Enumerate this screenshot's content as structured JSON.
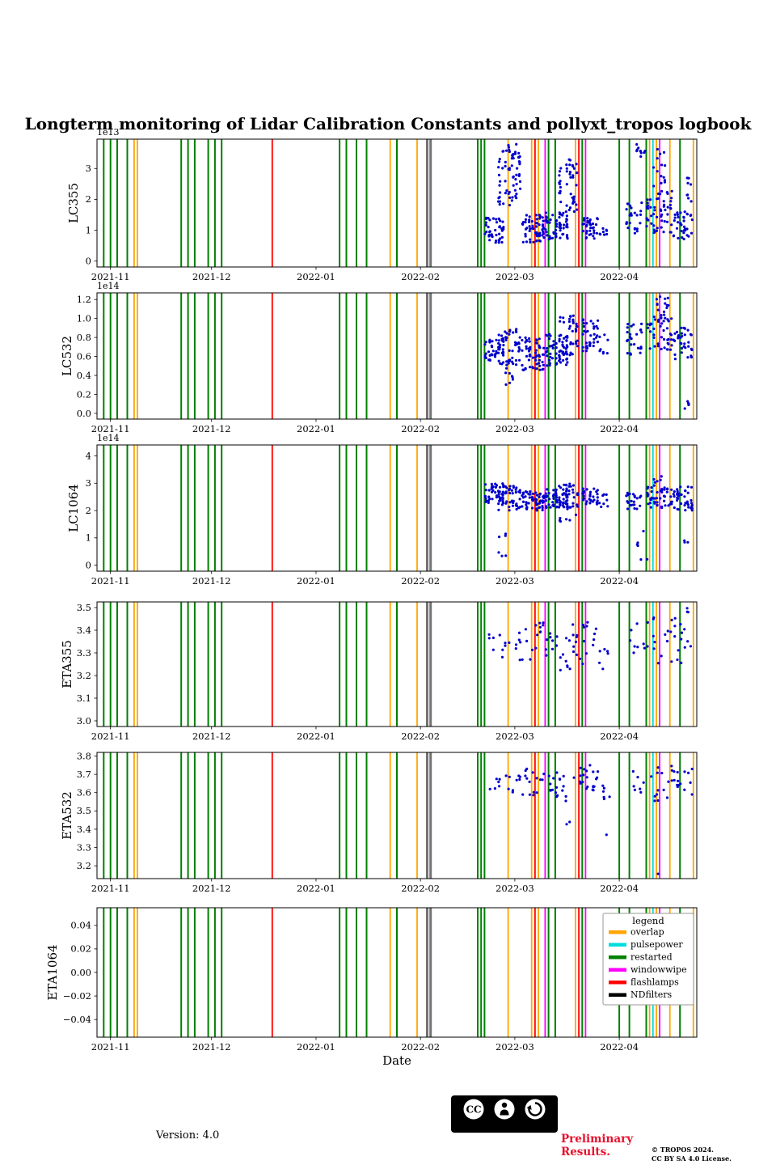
{
  "title": "Longterm monitoring of Lidar Calibration Constants and pollyxt_tropos logbook",
  "xlabel": "Date",
  "footer": {
    "version": "Version: 4.0",
    "preliminary_line1": "Preliminary",
    "preliminary_line2": "Results.",
    "copyright_line1": "© TROPOS 2024.",
    "copyright_line2": "CC BY SA 4.0 License.",
    "cc_badge": {
      "cc": "CC",
      "by": "BY",
      "sa": "SA"
    }
  },
  "legend": {
    "title": "legend",
    "entries": [
      {
        "label": "overlap",
        "color": "#FFA500"
      },
      {
        "label": "pulsepower",
        "color": "#00DDDD"
      },
      {
        "label": "restarted",
        "color": "#008000"
      },
      {
        "label": "windowwipe",
        "color": "#FF00FF"
      },
      {
        "label": "flashlamps",
        "color": "#FF0000"
      },
      {
        "label": "NDfilters",
        "color": "#000000"
      }
    ]
  },
  "chart_data": {
    "type": "scatter",
    "point_color": "#0000CD",
    "x_domain": [
      "2021-10-28",
      "2022-04-24"
    ],
    "x_ticks": [
      {
        "date": "2021-11-01",
        "label": "2021-11"
      },
      {
        "date": "2021-12-01",
        "label": "2021-12"
      },
      {
        "date": "2022-01-01",
        "label": "2022-01"
      },
      {
        "date": "2022-02-01",
        "label": "2022-02"
      },
      {
        "date": "2022-03-01",
        "label": "2022-03"
      },
      {
        "date": "2022-04-01",
        "label": "2022-04"
      }
    ],
    "events": [
      {
        "date": "2021-10-30",
        "type": "restarted"
      },
      {
        "date": "2021-11-01",
        "type": "restarted"
      },
      {
        "date": "2021-11-03",
        "type": "restarted"
      },
      {
        "date": "2021-11-06",
        "type": "restarted"
      },
      {
        "date": "2021-11-08",
        "type": "overlap"
      },
      {
        "date": "2021-11-09",
        "type": "overlap"
      },
      {
        "date": "2021-11-22",
        "type": "restarted"
      },
      {
        "date": "2021-11-24",
        "type": "restarted"
      },
      {
        "date": "2021-11-26",
        "type": "restarted"
      },
      {
        "date": "2021-11-30",
        "type": "restarted"
      },
      {
        "date": "2021-12-02",
        "type": "restarted"
      },
      {
        "date": "2021-12-04",
        "type": "restarted"
      },
      {
        "date": "2021-12-19",
        "type": "flashlamps"
      },
      {
        "date": "2022-01-08",
        "type": "restarted"
      },
      {
        "date": "2022-01-10",
        "type": "restarted"
      },
      {
        "date": "2022-01-13",
        "type": "restarted"
      },
      {
        "date": "2022-01-16",
        "type": "restarted"
      },
      {
        "date": "2022-01-23",
        "type": "overlap"
      },
      {
        "date": "2022-01-25",
        "type": "restarted"
      },
      {
        "date": "2022-01-31",
        "type": "overlap"
      },
      {
        "date": "2022-02-03",
        "type": "NDfilters"
      },
      {
        "date": "2022-02-04",
        "type": "NDfilters"
      },
      {
        "date": "2022-02-18",
        "type": "restarted"
      },
      {
        "date": "2022-02-19",
        "type": "restarted"
      },
      {
        "date": "2022-02-20",
        "type": "restarted"
      },
      {
        "date": "2022-02-27",
        "type": "overlap"
      },
      {
        "date": "2022-03-06",
        "type": "overlap"
      },
      {
        "date": "2022-03-07",
        "type": "flashlamps"
      },
      {
        "date": "2022-03-08",
        "type": "overlap"
      },
      {
        "date": "2022-03-10",
        "type": "pulsepower"
      },
      {
        "date": "2022-03-10",
        "type": "windowwipe"
      },
      {
        "date": "2022-03-11",
        "type": "restarted"
      },
      {
        "date": "2022-03-13",
        "type": "restarted"
      },
      {
        "date": "2022-03-19",
        "type": "overlap"
      },
      {
        "date": "2022-03-20",
        "type": "flashlamps"
      },
      {
        "date": "2022-03-21",
        "type": "restarted"
      },
      {
        "date": "2022-03-22",
        "type": "windowwipe"
      },
      {
        "date": "2022-04-01",
        "type": "restarted"
      },
      {
        "date": "2022-04-04",
        "type": "restarted"
      },
      {
        "date": "2022-04-09",
        "type": "restarted"
      },
      {
        "date": "2022-04-10",
        "type": "overlap"
      },
      {
        "date": "2022-04-11",
        "type": "pulsepower"
      },
      {
        "date": "2022-04-12",
        "type": "overlap"
      },
      {
        "date": "2022-04-13",
        "type": "windowwipe"
      },
      {
        "date": "2022-04-16",
        "type": "overlap"
      },
      {
        "date": "2022-04-19",
        "type": "restarted"
      },
      {
        "date": "2022-04-23",
        "type": "overlap"
      }
    ],
    "panels": [
      {
        "ylabel": "LC355",
        "offset_text": "1e13",
        "unit": "1e13",
        "ylim": [
          -0.19,
          3.95
        ],
        "yticks": [
          {
            "v": 0,
            "label": "0"
          },
          {
            "v": 1,
            "label": "1"
          },
          {
            "v": 2,
            "label": "2"
          },
          {
            "v": 3,
            "label": "3"
          }
        ],
        "clusters": [
          {
            "from": "2022-02-20",
            "to": "2022-02-26",
            "y": [
              0.6,
              1.4
            ],
            "n": 45
          },
          {
            "from": "2022-02-24",
            "to": "2022-03-03",
            "y": [
              1.8,
              3.6
            ],
            "n": 60
          },
          {
            "from": "2022-02-26",
            "to": "2022-03-02",
            "y": [
              3.4,
              3.8
            ],
            "n": 8
          },
          {
            "from": "2022-03-03",
            "to": "2022-03-10",
            "y": [
              0.6,
              1.5
            ],
            "n": 60
          },
          {
            "from": "2022-03-10",
            "to": "2022-03-17",
            "y": [
              0.7,
              1.6
            ],
            "n": 60
          },
          {
            "from": "2022-03-14",
            "to": "2022-03-20",
            "y": [
              1.6,
              3.3
            ],
            "n": 45
          },
          {
            "from": "2022-03-21",
            "to": "2022-03-26",
            "y": [
              0.7,
              1.4
            ],
            "n": 35
          },
          {
            "from": "2022-03-26",
            "to": "2022-03-29",
            "y": [
              0.8,
              1.1
            ],
            "n": 8
          },
          {
            "from": "2022-04-03",
            "to": "2022-04-08",
            "y": [
              0.9,
              1.9
            ],
            "n": 25
          },
          {
            "from": "2022-04-05",
            "to": "2022-04-09",
            "y": [
              3.3,
              3.8
            ],
            "n": 10
          },
          {
            "from": "2022-04-09",
            "to": "2022-04-17",
            "y": [
              0.9,
              2.3
            ],
            "n": 55
          },
          {
            "from": "2022-04-11",
            "to": "2022-04-15",
            "y": [
              2.4,
              3.7
            ],
            "n": 14
          },
          {
            "from": "2022-04-17",
            "to": "2022-04-23",
            "y": [
              0.7,
              1.6
            ],
            "n": 35
          },
          {
            "from": "2022-04-21",
            "to": "2022-04-23",
            "y": [
              1.9,
              2.7
            ],
            "n": 8
          }
        ]
      },
      {
        "ylabel": "LC532",
        "offset_text": "1e14",
        "unit": "1e14",
        "ylim": [
          -0.06,
          1.27
        ],
        "yticks": [
          {
            "v": 0.0,
            "label": "0.0"
          },
          {
            "v": 0.2,
            "label": "0.2"
          },
          {
            "v": 0.4,
            "label": "0.4"
          },
          {
            "v": 0.6,
            "label": "0.6"
          },
          {
            "v": 0.8,
            "label": "0.8"
          },
          {
            "v": 1.0,
            "label": "1.0"
          },
          {
            "v": 1.2,
            "label": "1.2"
          }
        ],
        "clusters": [
          {
            "from": "2022-02-20",
            "to": "2022-02-26",
            "y": [
              0.55,
              0.8
            ],
            "n": 45
          },
          {
            "from": "2022-02-24",
            "to": "2022-03-03",
            "y": [
              0.5,
              0.9
            ],
            "n": 50
          },
          {
            "from": "2022-02-26",
            "to": "2022-03-01",
            "y": [
              0.3,
              0.5
            ],
            "n": 8
          },
          {
            "from": "2022-03-03",
            "to": "2022-03-10",
            "y": [
              0.45,
              0.8
            ],
            "n": 60
          },
          {
            "from": "2022-03-10",
            "to": "2022-03-17",
            "y": [
              0.5,
              0.85
            ],
            "n": 60
          },
          {
            "from": "2022-03-14",
            "to": "2022-03-20",
            "y": [
              0.6,
              1.05
            ],
            "n": 45
          },
          {
            "from": "2022-03-21",
            "to": "2022-03-26",
            "y": [
              0.65,
              1.0
            ],
            "n": 35
          },
          {
            "from": "2022-03-26",
            "to": "2022-03-29",
            "y": [
              0.6,
              0.85
            ],
            "n": 8
          },
          {
            "from": "2022-04-03",
            "to": "2022-04-08",
            "y": [
              0.6,
              0.95
            ],
            "n": 25
          },
          {
            "from": "2022-04-09",
            "to": "2022-04-17",
            "y": [
              0.65,
              1.05
            ],
            "n": 45
          },
          {
            "from": "2022-04-12",
            "to": "2022-04-16",
            "y": [
              1.05,
              1.25
            ],
            "n": 12
          },
          {
            "from": "2022-04-17",
            "to": "2022-04-23",
            "y": [
              0.55,
              0.95
            ],
            "n": 35
          },
          {
            "from": "2022-04-20",
            "to": "2022-04-23",
            "y": [
              0.0,
              0.25
            ],
            "n": 5
          }
        ]
      },
      {
        "ylabel": "LC1064",
        "offset_text": "1e14",
        "unit": "1e14",
        "ylim": [
          -0.22,
          4.4
        ],
        "yticks": [
          {
            "v": 0,
            "label": "0"
          },
          {
            "v": 1,
            "label": "1"
          },
          {
            "v": 2,
            "label": "2"
          },
          {
            "v": 3,
            "label": "3"
          },
          {
            "v": 4,
            "label": "4"
          }
        ],
        "clusters": [
          {
            "from": "2022-02-20",
            "to": "2022-02-26",
            "y": [
              2.2,
              3.0
            ],
            "n": 45
          },
          {
            "from": "2022-02-24",
            "to": "2022-03-03",
            "y": [
              2.0,
              2.9
            ],
            "n": 50
          },
          {
            "from": "2022-02-24",
            "to": "2022-02-27",
            "y": [
              0.3,
              1.2
            ],
            "n": 6
          },
          {
            "from": "2022-03-03",
            "to": "2022-03-10",
            "y": [
              2.0,
              2.7
            ],
            "n": 60
          },
          {
            "from": "2022-03-10",
            "to": "2022-03-17",
            "y": [
              2.1,
              2.8
            ],
            "n": 55
          },
          {
            "from": "2022-03-14",
            "to": "2022-03-20",
            "y": [
              1.6,
              3.0
            ],
            "n": 45
          },
          {
            "from": "2022-03-21",
            "to": "2022-03-26",
            "y": [
              2.2,
              2.8
            ],
            "n": 30
          },
          {
            "from": "2022-03-26",
            "to": "2022-03-29",
            "y": [
              2.1,
              2.6
            ],
            "n": 8
          },
          {
            "from": "2022-04-03",
            "to": "2022-04-08",
            "y": [
              2.0,
              2.7
            ],
            "n": 22
          },
          {
            "from": "2022-04-06",
            "to": "2022-04-10",
            "y": [
              0.2,
              1.6
            ],
            "n": 6
          },
          {
            "from": "2022-04-09",
            "to": "2022-04-17",
            "y": [
              2.1,
              2.9
            ],
            "n": 45
          },
          {
            "from": "2022-04-11",
            "to": "2022-04-14",
            "y": [
              2.9,
              3.3
            ],
            "n": 6
          },
          {
            "from": "2022-04-17",
            "to": "2022-04-23",
            "y": [
              2.0,
              2.9
            ],
            "n": 40
          },
          {
            "from": "2022-04-20",
            "to": "2022-04-22",
            "y": [
              0.3,
              1.0
            ],
            "n": 3
          }
        ]
      },
      {
        "ylabel": "ETA355",
        "offset_text": "",
        "unit": "",
        "ylim": [
          2.975,
          3.525
        ],
        "yticks": [
          {
            "v": 3.0,
            "label": "3.0"
          },
          {
            "v": 3.1,
            "label": "3.1"
          },
          {
            "v": 3.2,
            "label": "3.2"
          },
          {
            "v": 3.3,
            "label": "3.3"
          },
          {
            "v": 3.4,
            "label": "3.4"
          },
          {
            "v": 3.5,
            "label": "3.5"
          }
        ],
        "clusters": [
          {
            "from": "2022-02-21",
            "to": "2022-03-02",
            "y": [
              3.28,
              3.4
            ],
            "n": 12
          },
          {
            "from": "2022-03-02",
            "to": "2022-03-10",
            "y": [
              3.25,
              3.45
            ],
            "n": 18
          },
          {
            "from": "2022-03-10",
            "to": "2022-03-18",
            "y": [
              3.22,
              3.42
            ],
            "n": 18
          },
          {
            "from": "2022-03-18",
            "to": "2022-03-26",
            "y": [
              3.25,
              3.45
            ],
            "n": 20
          },
          {
            "from": "2022-03-26",
            "to": "2022-03-30",
            "y": [
              3.2,
              3.35
            ],
            "n": 6
          },
          {
            "from": "2022-04-04",
            "to": "2022-04-11",
            "y": [
              3.3,
              3.45
            ],
            "n": 10
          },
          {
            "from": "2022-04-11",
            "to": "2022-04-18",
            "y": [
              3.25,
              3.48
            ],
            "n": 16
          },
          {
            "from": "2022-04-18",
            "to": "2022-04-23",
            "y": [
              3.25,
              3.45
            ],
            "n": 10
          },
          {
            "from": "2022-04-21",
            "to": "2022-04-23",
            "y": [
              3.42,
              3.5
            ],
            "n": 3
          }
        ]
      },
      {
        "ylabel": "ETA532",
        "offset_text": "",
        "unit": "",
        "ylim": [
          3.13,
          3.82
        ],
        "yticks": [
          {
            "v": 3.2,
            "label": "3.2"
          },
          {
            "v": 3.3,
            "label": "3.3"
          },
          {
            "v": 3.4,
            "label": "3.4"
          },
          {
            "v": 3.5,
            "label": "3.5"
          },
          {
            "v": 3.6,
            "label": "3.6"
          },
          {
            "v": 3.7,
            "label": "3.7"
          },
          {
            "v": 3.8,
            "label": "3.8"
          }
        ],
        "clusters": [
          {
            "from": "2022-02-21",
            "to": "2022-03-02",
            "y": [
              3.6,
              3.7
            ],
            "n": 12
          },
          {
            "from": "2022-03-02",
            "to": "2022-03-10",
            "y": [
              3.58,
              3.73
            ],
            "n": 18
          },
          {
            "from": "2022-03-10",
            "to": "2022-03-18",
            "y": [
              3.55,
              3.72
            ],
            "n": 18
          },
          {
            "from": "2022-03-16",
            "to": "2022-03-18",
            "y": [
              3.4,
              3.46
            ],
            "n": 2
          },
          {
            "from": "2022-03-18",
            "to": "2022-03-26",
            "y": [
              3.6,
              3.75
            ],
            "n": 22
          },
          {
            "from": "2022-03-26",
            "to": "2022-03-30",
            "y": [
              3.55,
              3.68
            ],
            "n": 6
          },
          {
            "from": "2022-03-28",
            "to": "2022-03-29",
            "y": [
              3.33,
              3.37
            ],
            "n": 1
          },
          {
            "from": "2022-04-04",
            "to": "2022-04-11",
            "y": [
              3.6,
              3.72
            ],
            "n": 8
          },
          {
            "from": "2022-04-11",
            "to": "2022-04-18",
            "y": [
              3.55,
              3.75
            ],
            "n": 16
          },
          {
            "from": "2022-04-12",
            "to": "2022-04-13",
            "y": [
              3.15,
              3.2
            ],
            "n": 1
          },
          {
            "from": "2022-04-18",
            "to": "2022-04-23",
            "y": [
              3.58,
              3.73
            ],
            "n": 12
          }
        ]
      },
      {
        "ylabel": "ETA1064",
        "offset_text": "",
        "unit": "",
        "ylim": [
          -0.055,
          0.055
        ],
        "yticks": [
          {
            "v": -0.04,
            "label": "−0.04"
          },
          {
            "v": -0.02,
            "label": "−0.02"
          },
          {
            "v": 0.0,
            "label": "0.00"
          },
          {
            "v": 0.02,
            "label": "0.02"
          },
          {
            "v": 0.04,
            "label": "0.04"
          }
        ],
        "clusters": []
      }
    ]
  }
}
